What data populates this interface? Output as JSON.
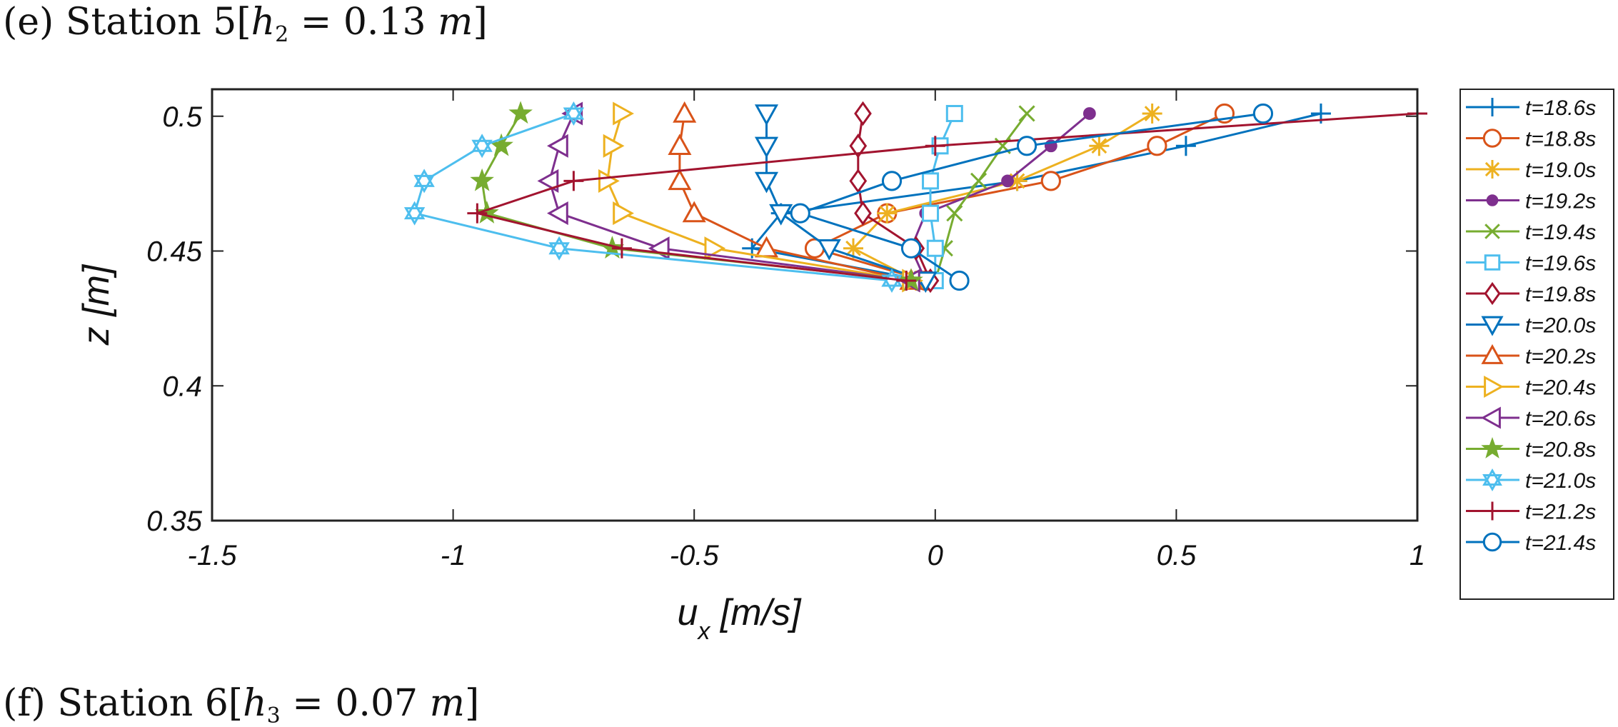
{
  "captions": {
    "top": {
      "prefix": "(e) Station 5[",
      "var": "h",
      "sub": "2",
      "eq": " = 0.13 ",
      "unit": "m",
      "suffix": "]"
    },
    "bottom": {
      "prefix": "(f) Station 6[",
      "var": "h",
      "sub": "3",
      "eq": " = 0.07 ",
      "unit": "m",
      "suffix": "]"
    }
  },
  "chart_data": {
    "type": "line",
    "xlabel": "u_x [m/s]",
    "xlabel_main": "u",
    "xlabel_sub": "x",
    "xlabel_unit": " [m/s]",
    "ylabel": "z [m]",
    "xlim": [
      -1.5,
      1
    ],
    "ylim": [
      0.35,
      0.51
    ],
    "xticks": [
      -1.5,
      -1,
      -0.5,
      0,
      0.5,
      1
    ],
    "xtick_labels": [
      "-1.5",
      "-1",
      "-0.5",
      "0",
      "0.5",
      "1"
    ],
    "yticks": [
      0.35,
      0.4,
      0.45,
      0.5
    ],
    "ytick_labels": [
      "0.35",
      "0.4",
      "0.45",
      "0.5"
    ],
    "grid": false,
    "legend_position": "right outside",
    "z": [
      0.439,
      0.451,
      0.464,
      0.476,
      0.489,
      0.501
    ],
    "series": [
      {
        "name": "t=18.6s",
        "color": "#0072BD",
        "marker": "plus",
        "x": [
          -0.02,
          -0.38,
          -0.32,
          0.17,
          0.52,
          0.8
        ]
      },
      {
        "name": "t=18.8s",
        "color": "#D95319",
        "marker": "circle",
        "x": [
          -0.02,
          -0.25,
          -0.1,
          0.24,
          0.46,
          0.6
        ]
      },
      {
        "name": "t=19.0s",
        "color": "#EDB120",
        "marker": "asterisk",
        "x": [
          -0.04,
          -0.17,
          -0.1,
          0.17,
          0.34,
          0.45
        ]
      },
      {
        "name": "t=19.2s",
        "color": "#7E2F8E",
        "marker": "dot",
        "x": [
          -0.02,
          -0.05,
          -0.02,
          0.15,
          0.24,
          0.32
        ]
      },
      {
        "name": "t=19.4s",
        "color": "#77AC30",
        "marker": "x",
        "x": [
          0.0,
          0.02,
          0.04,
          0.09,
          0.14,
          0.19
        ]
      },
      {
        "name": "t=19.6s",
        "color": "#4DBEEE",
        "marker": "square",
        "x": [
          0.0,
          0.0,
          -0.01,
          -0.01,
          0.01,
          0.04
        ]
      },
      {
        "name": "t=19.8s",
        "color": "#A2142F",
        "marker": "diamond",
        "x": [
          -0.01,
          -0.04,
          -0.15,
          -0.16,
          -0.16,
          -0.15
        ]
      },
      {
        "name": "t=20.0s",
        "color": "#0072BD",
        "marker": "tri-down",
        "x": [
          -0.02,
          -0.22,
          -0.32,
          -0.35,
          -0.35,
          -0.35
        ]
      },
      {
        "name": "t=20.2s",
        "color": "#D95319",
        "marker": "tri-up",
        "x": [
          -0.05,
          -0.35,
          -0.5,
          -0.53,
          -0.53,
          -0.52
        ]
      },
      {
        "name": "t=20.4s",
        "color": "#EDB120",
        "marker": "tri-right",
        "x": [
          -0.05,
          -0.46,
          -0.65,
          -0.68,
          -0.67,
          -0.65
        ]
      },
      {
        "name": "t=20.6s",
        "color": "#7E2F8E",
        "marker": "tri-left",
        "x": [
          -0.05,
          -0.57,
          -0.78,
          -0.8,
          -0.78,
          -0.75
        ]
      },
      {
        "name": "t=20.8s",
        "color": "#77AC30",
        "marker": "star5",
        "x": [
          -0.05,
          -0.67,
          -0.93,
          -0.94,
          -0.9,
          -0.86
        ]
      },
      {
        "name": "t=21.0s",
        "color": "#4DBEEE",
        "marker": "hexagram",
        "x": [
          -0.09,
          -0.78,
          -1.08,
          -1.06,
          -0.94,
          -0.75
        ]
      },
      {
        "name": "t=21.2s",
        "color": "#A2142F",
        "marker": "plus",
        "x": [
          -0.06,
          -0.65,
          -0.95,
          -0.75,
          0.0,
          1.0
        ]
      },
      {
        "name": "t=21.4s",
        "color": "#0072BD",
        "marker": "circle",
        "x": [
          0.05,
          -0.05,
          -0.28,
          -0.09,
          0.19,
          0.68
        ]
      }
    ]
  }
}
